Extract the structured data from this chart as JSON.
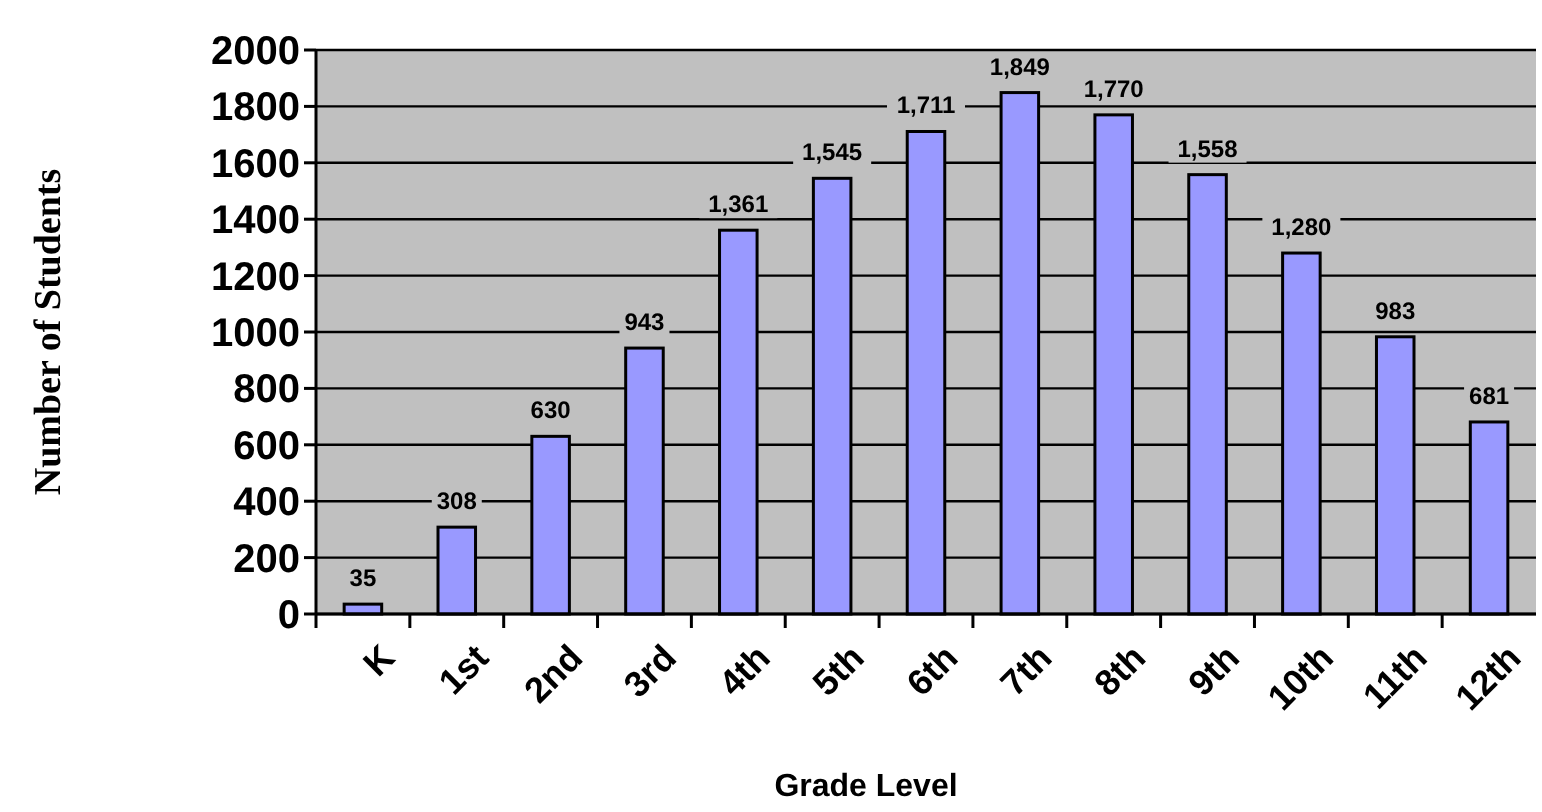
{
  "chart_data": {
    "type": "bar",
    "xlabel": "Grade Level",
    "ylabel": "Number of Students",
    "categories": [
      "K",
      "1st",
      "2nd",
      "3rd",
      "4th",
      "5th",
      "6th",
      "7th",
      "8th",
      "9th",
      "10th",
      "11th",
      "12th"
    ],
    "values": [
      35,
      308,
      630,
      943,
      1361,
      1545,
      1711,
      1849,
      1770,
      1558,
      1280,
      983,
      681
    ],
    "value_labels": [
      "35",
      "308",
      "630",
      "943",
      "1,361",
      "1,545",
      "1,711",
      "1,849",
      "1,770",
      "1,558",
      "1,280",
      "983",
      "681"
    ],
    "color": "#9999ff",
    "ylim": [
      0,
      2000
    ],
    "yticks": [
      0,
      200,
      400,
      600,
      800,
      1000,
      1200,
      1400,
      1600,
      1800,
      2000
    ],
    "grid": "y"
  }
}
